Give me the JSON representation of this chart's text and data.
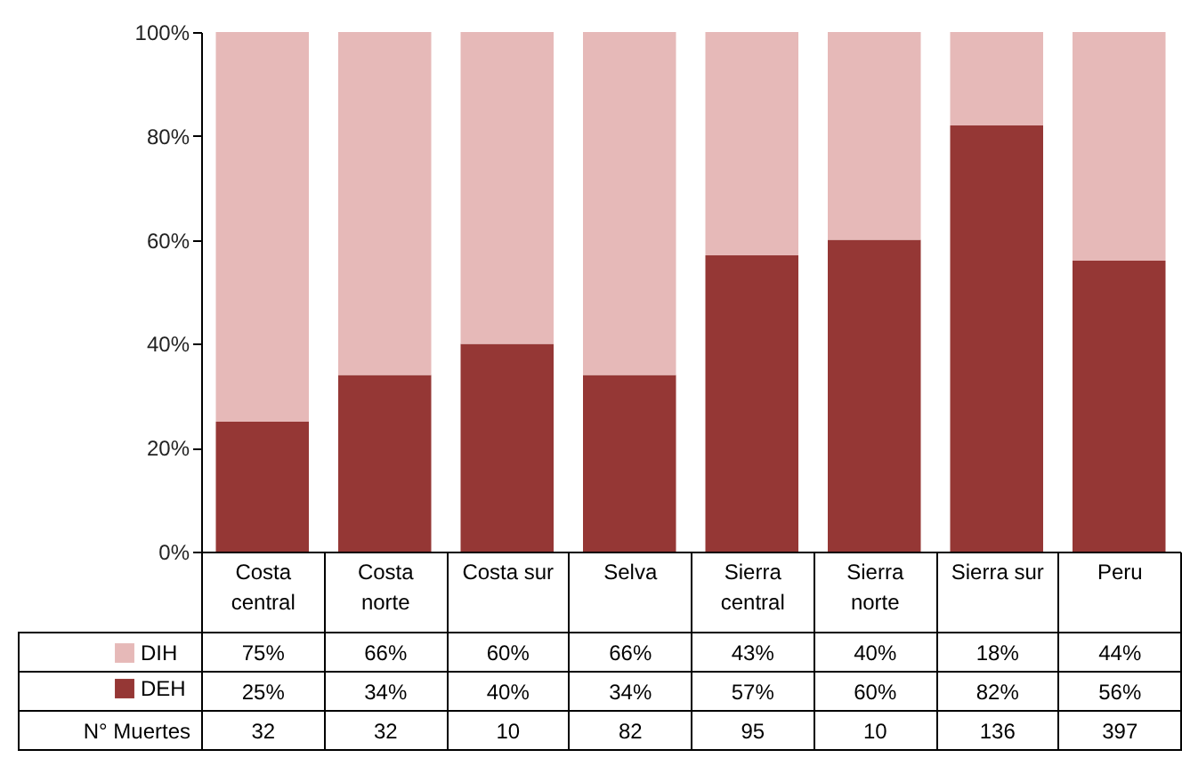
{
  "chart_data": {
    "type": "bar",
    "stacked": true,
    "legend": "bottom left",
    "categories": [
      "Costa central",
      "Costa norte",
      "Costa sur",
      "Selva",
      "Sierra central",
      "Sierra norte",
      "Sierra sur",
      "Peru"
    ],
    "series": [
      {
        "name": "DEH",
        "color": "#953735",
        "values": [
          25,
          34,
          40,
          34,
          57,
          60,
          82,
          56
        ],
        "value_labels": [
          "25%",
          "34%",
          "40%",
          "34%",
          "57%",
          "60%",
          "82%",
          "56%"
        ]
      },
      {
        "name": "DIH",
        "color": "#e6b9b8",
        "values": [
          75,
          66,
          60,
          66,
          43,
          40,
          18,
          44
        ],
        "value_labels": [
          "75%",
          "66%",
          "60%",
          "66%",
          "43%",
          "40%",
          "18%",
          "44%"
        ]
      }
    ],
    "ylim": [
      0,
      100
    ],
    "yticks": [
      {
        "value": 0,
        "label": "0%"
      },
      {
        "value": 20,
        "label": "20%"
      },
      {
        "value": 40,
        "label": "40%"
      },
      {
        "value": 60,
        "label": "60%"
      },
      {
        "value": 80,
        "label": "80%"
      },
      {
        "value": 100,
        "label": "100%"
      }
    ],
    "annotations": [
      "N° Muertes",
      "32",
      "32",
      "10",
      "82",
      "95",
      "10",
      "136",
      "397"
    ]
  }
}
